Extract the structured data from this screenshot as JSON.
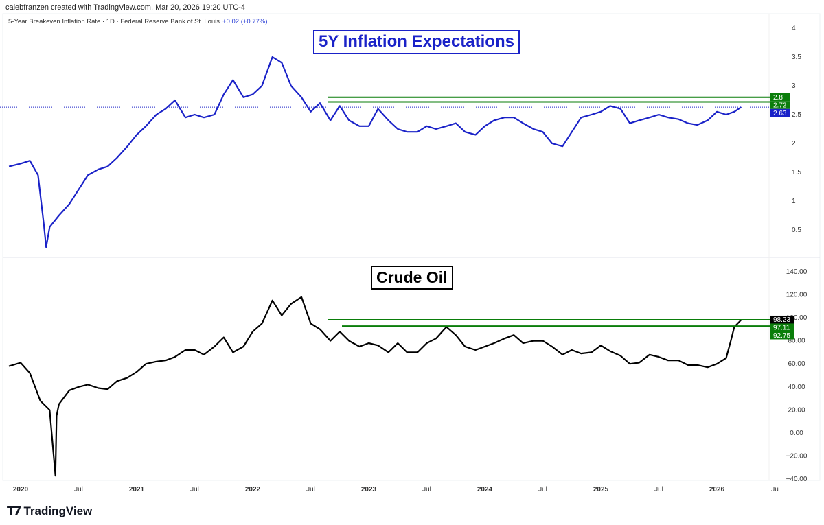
{
  "header": {
    "credit": "calebfranzen created with TradingView.com, Mar 20, 2026 19:20 UTC-4",
    "legend": "5-Year Breakeven Inflation Rate · 1D · Federal Reserve Bank of St. Louis",
    "change": "+0.02 (+0.77%)"
  },
  "logo": "TradingView",
  "colors": {
    "blue": "#1a22c8",
    "black": "#000000",
    "green": "#0a7d0a"
  },
  "chart_data": [
    {
      "type": "line",
      "title": "5Y Inflation Expectations",
      "ylim": [
        0,
        4.2
      ],
      "yticks": [
        "4",
        "3.5",
        "3",
        "2.5",
        "2",
        "1.5",
        "1",
        "0.5"
      ],
      "ytick_values": [
        4,
        3.5,
        3,
        2.5,
        2,
        1.5,
        1,
        0.5
      ],
      "levels": [
        {
          "label": "2.8",
          "value": 2.8,
          "color": "#0a7d0a"
        },
        {
          "label": "2.72",
          "value": 2.72,
          "color": "#0a7d0a"
        },
        {
          "label": "2.63",
          "value": 2.63,
          "color": "#1a22c8",
          "dotted": true
        }
      ],
      "x": [
        2019.9,
        2020.0,
        2020.08,
        2020.15,
        2020.2,
        2020.22,
        2020.25,
        2020.33,
        2020.42,
        2020.5,
        2020.58,
        2020.67,
        2020.75,
        2020.83,
        2020.92,
        2021.0,
        2021.08,
        2021.17,
        2021.25,
        2021.33,
        2021.42,
        2021.5,
        2021.58,
        2021.67,
        2021.75,
        2021.83,
        2021.92,
        2022.0,
        2022.08,
        2022.17,
        2022.25,
        2022.33,
        2022.42,
        2022.5,
        2022.58,
        2022.67,
        2022.75,
        2022.83,
        2022.92,
        2023.0,
        2023.08,
        2023.17,
        2023.25,
        2023.33,
        2023.42,
        2023.5,
        2023.58,
        2023.67,
        2023.75,
        2023.83,
        2023.92,
        2024.0,
        2024.08,
        2024.17,
        2024.25,
        2024.33,
        2024.42,
        2024.5,
        2024.58,
        2024.67,
        2024.75,
        2024.83,
        2024.92,
        2025.0,
        2025.08,
        2025.17,
        2025.25,
        2025.33,
        2025.42,
        2025.5,
        2025.58,
        2025.67,
        2025.75,
        2025.83,
        2025.92,
        2026.0,
        2026.08,
        2026.15,
        2026.21
      ],
      "values": [
        1.6,
        1.65,
        1.7,
        1.45,
        0.6,
        0.2,
        0.55,
        0.75,
        0.95,
        1.2,
        1.45,
        1.55,
        1.6,
        1.75,
        1.95,
        2.15,
        2.3,
        2.5,
        2.6,
        2.75,
        2.45,
        2.5,
        2.45,
        2.5,
        2.85,
        3.1,
        2.8,
        2.85,
        3.0,
        3.5,
        3.4,
        3.0,
        2.8,
        2.55,
        2.7,
        2.4,
        2.65,
        2.4,
        2.3,
        2.3,
        2.6,
        2.4,
        2.25,
        2.2,
        2.2,
        2.3,
        2.25,
        2.3,
        2.35,
        2.2,
        2.15,
        2.3,
        2.4,
        2.45,
        2.45,
        2.35,
        2.25,
        2.2,
        2.0,
        1.95,
        2.2,
        2.45,
        2.5,
        2.55,
        2.65,
        2.6,
        2.35,
        2.4,
        2.45,
        2.5,
        2.45,
        2.42,
        2.35,
        2.32,
        2.4,
        2.55,
        2.5,
        2.55,
        2.63
      ]
    },
    {
      "type": "line",
      "title": "Crude Oil",
      "ylim": [
        -40,
        145
      ],
      "yticks": [
        "140.00",
        "120.00",
        "100.00",
        "80.00",
        "60.00",
        "40.00",
        "20.00",
        "0.00",
        "−20.00",
        "−40.00"
      ],
      "ytick_values": [
        140,
        120,
        100,
        80,
        60,
        40,
        20,
        0,
        -20,
        -40
      ],
      "levels": [
        {
          "label": "98.23",
          "value": 98.23,
          "color": "#000000"
        },
        {
          "label": "97.11",
          "value": 97.11,
          "color": "#0a7d0a"
        },
        {
          "label": "92.75",
          "value": 92.75,
          "color": "#0a7d0a"
        }
      ],
      "x": [
        2019.9,
        2020.0,
        2020.08,
        2020.17,
        2020.25,
        2020.3,
        2020.31,
        2020.33,
        2020.42,
        2020.5,
        2020.58,
        2020.67,
        2020.75,
        2020.83,
        2020.92,
        2021.0,
        2021.08,
        2021.17,
        2021.25,
        2021.33,
        2021.42,
        2021.5,
        2021.58,
        2021.67,
        2021.75,
        2021.83,
        2021.92,
        2022.0,
        2022.08,
        2022.17,
        2022.25,
        2022.33,
        2022.42,
        2022.5,
        2022.58,
        2022.67,
        2022.75,
        2022.83,
        2022.92,
        2023.0,
        2023.08,
        2023.17,
        2023.25,
        2023.33,
        2023.42,
        2023.5,
        2023.58,
        2023.67,
        2023.75,
        2023.83,
        2023.92,
        2024.0,
        2024.08,
        2024.17,
        2024.25,
        2024.33,
        2024.42,
        2024.5,
        2024.58,
        2024.67,
        2024.75,
        2024.83,
        2024.92,
        2025.0,
        2025.08,
        2025.17,
        2025.25,
        2025.33,
        2025.42,
        2025.5,
        2025.58,
        2025.67,
        2025.75,
        2025.83,
        2025.92,
        2026.0,
        2026.08,
        2026.12,
        2026.15,
        2026.21
      ],
      "values": [
        58,
        61,
        52,
        28,
        20,
        -37,
        15,
        25,
        37,
        40,
        42,
        39,
        38,
        45,
        48,
        53,
        60,
        62,
        63,
        66,
        72,
        72,
        68,
        75,
        83,
        70,
        75,
        88,
        95,
        115,
        102,
        112,
        118,
        95,
        90,
        80,
        88,
        80,
        75,
        78,
        76,
        70,
        78,
        70,
        70,
        78,
        82,
        92,
        85,
        75,
        72,
        75,
        78,
        82,
        85,
        78,
        80,
        80,
        75,
        68,
        72,
        69,
        70,
        76,
        71,
        67,
        60,
        61,
        68,
        66,
        63,
        63,
        59,
        59,
        57,
        60,
        65,
        80,
        92,
        98.23
      ]
    }
  ],
  "xaxis": {
    "ticks": [
      "2020",
      "Jul",
      "2021",
      "Jul",
      "2022",
      "Jul",
      "2023",
      "Jul",
      "2024",
      "Jul",
      "2025",
      "Jul",
      "2026",
      "Ju"
    ],
    "values": [
      2020,
      2020.5,
      2021,
      2021.5,
      2022,
      2022.5,
      2023,
      2023.5,
      2024,
      2024.5,
      2025,
      2025.5,
      2026,
      2026.5
    ]
  }
}
